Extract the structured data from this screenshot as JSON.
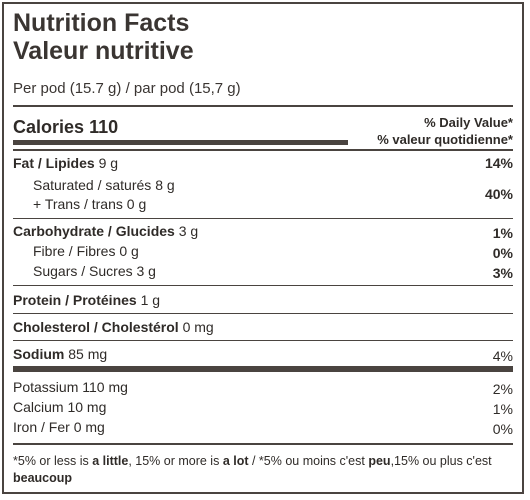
{
  "title_en": "Nutrition Facts",
  "title_fr": "Valeur nutritive",
  "serving": "Per pod (15.7 g) / par pod (15,7 g)",
  "calories": {
    "label": "Calories",
    "value": "110"
  },
  "daily_value_header": {
    "en": "% Daily Value*",
    "fr": "% valeur quotidienne*"
  },
  "rows": {
    "fat": {
      "label": "Fat / Lipides",
      "amount": "9 g",
      "pct": "14%"
    },
    "saturated": {
      "label": "Saturated / saturés",
      "amount": "8 g"
    },
    "trans": {
      "label": "+ Trans  / trans",
      "amount": "0 g"
    },
    "sat_trans_pct": "40%",
    "carb": {
      "label": "Carbohydrate / Glucides",
      "amount": "3 g",
      "pct": "1%"
    },
    "fibre": {
      "label": "Fibre / Fibres",
      "amount": "0 g",
      "pct": "0%"
    },
    "sugars": {
      "label": "Sugars / Sucres",
      "amount": "3 g",
      "pct": "3%"
    },
    "protein": {
      "label": "Protein / Protéines",
      "amount": "1 g"
    },
    "cholesterol": {
      "label": "Cholesterol / Cholestérol",
      "amount": "0 mg"
    },
    "sodium": {
      "label": "Sodium",
      "amount": "85 mg",
      "pct": "4%"
    },
    "potassium": {
      "label": "Potassium",
      "amount": "110 mg",
      "pct": "2%"
    },
    "calcium": {
      "label": "Calcium",
      "amount": "10 mg",
      "pct": "1%"
    },
    "iron": {
      "label": "Iron / Fer",
      "amount": "0 mg",
      "pct": "0%"
    }
  },
  "footnote": {
    "p1": "*5% or less is ",
    "b1": "a little",
    "p2": ", 15% or more is ",
    "b2": "a lot",
    "p3": " / *5% ou moins c'est ",
    "b3": "peu",
    "p4": ",15% ou plus c'est ",
    "b4": "beaucoup"
  },
  "colors": {
    "border": "#4a4440",
    "text": "#2f2b28"
  }
}
